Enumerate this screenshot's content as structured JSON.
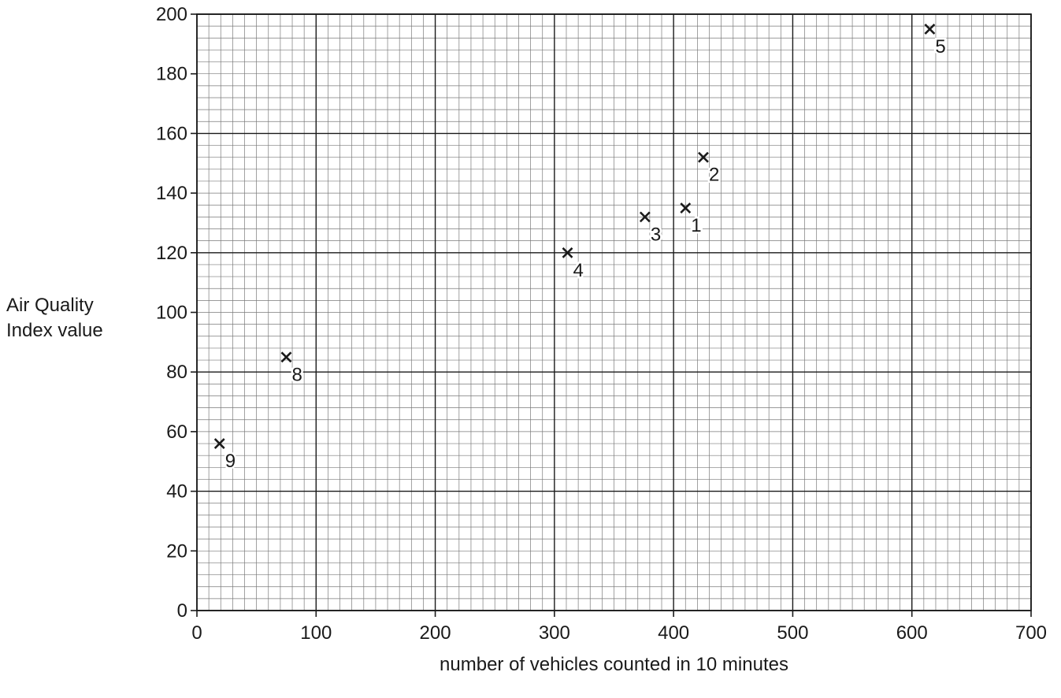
{
  "chart_data": {
    "type": "scatter",
    "title": "",
    "xlabel": "number of vehicles counted in 10 minutes",
    "ylabel_lines": [
      "Air Quality",
      "Index value"
    ],
    "xlim": [
      0,
      700
    ],
    "ylim": [
      0,
      200
    ],
    "x_ticks": [
      0,
      100,
      200,
      300,
      400,
      500,
      600,
      700
    ],
    "y_ticks": [
      0,
      20,
      40,
      60,
      80,
      100,
      120,
      140,
      160,
      180,
      200
    ],
    "grid": true,
    "marker": "x",
    "points": [
      {
        "label": "1",
        "x": 410,
        "y": 135
      },
      {
        "label": "2",
        "x": 425,
        "y": 152
      },
      {
        "label": "3",
        "x": 376,
        "y": 132
      },
      {
        "label": "4",
        "x": 311,
        "y": 120
      },
      {
        "label": "5",
        "x": 615,
        "y": 195
      },
      {
        "label": "8",
        "x": 75,
        "y": 85
      },
      {
        "label": "9",
        "x": 19,
        "y": 56
      }
    ]
  }
}
